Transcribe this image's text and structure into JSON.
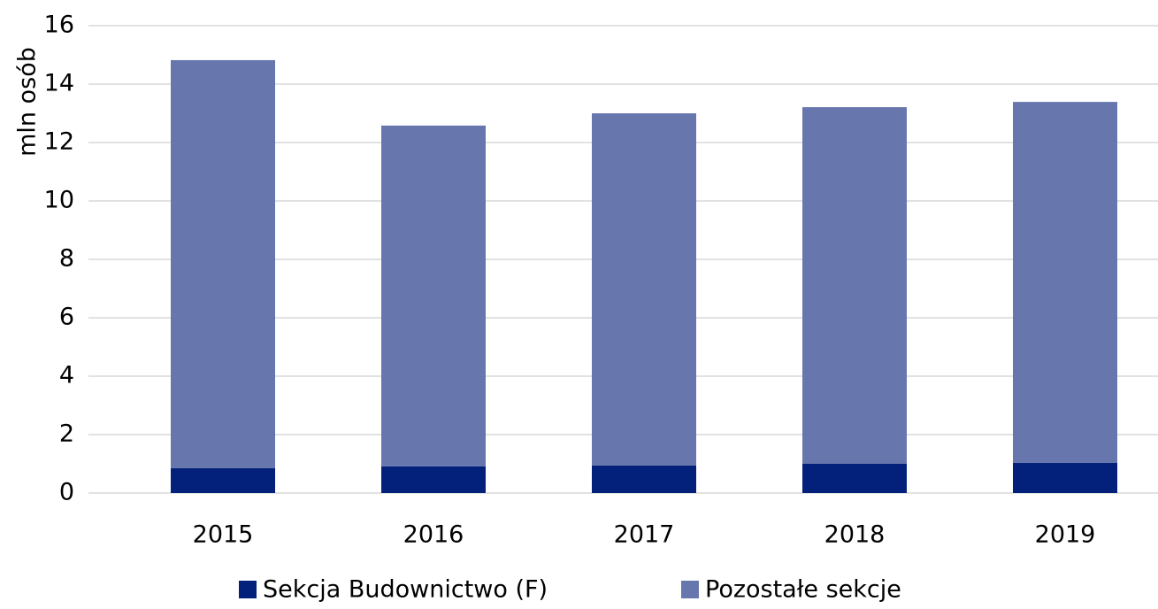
{
  "chart_data": {
    "type": "stacked_bar",
    "y_label": "mln osób",
    "categories": [
      "2015",
      "2016",
      "2017",
      "2018",
      "2019"
    ],
    "series": [
      {
        "name": "Sekcja Budownictwo (F)",
        "color": "#03217a",
        "values": [
          0.85,
          0.91,
          0.94,
          1.0,
          1.03
        ]
      },
      {
        "name": "Pozostałe sekcje",
        "color": "#6777ad",
        "values": [
          13.97,
          11.67,
          12.06,
          12.21,
          12.36
        ]
      }
    ],
    "ylim": [
      0,
      16
    ],
    "yticks": [
      0,
      2,
      4,
      6,
      8,
      10,
      12,
      14,
      16
    ],
    "grid": true,
    "legend": "bottom"
  }
}
